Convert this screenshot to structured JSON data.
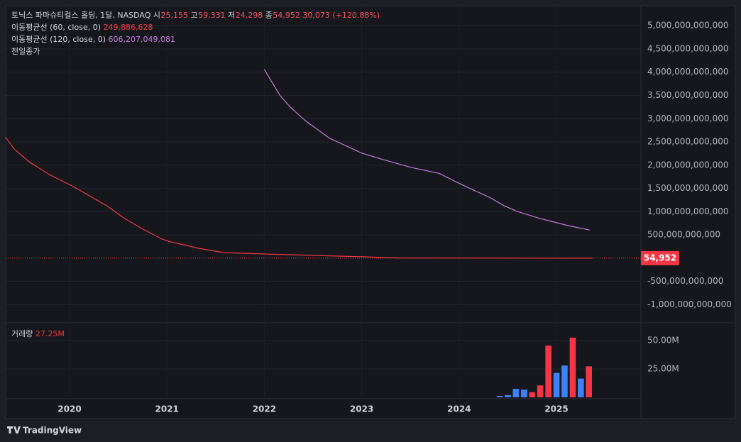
{
  "chart_data": {
    "type": "line",
    "title": "토닉스 파마슈티컬스 홀딩, 1달, NASDAQ",
    "ohlc_labels": [
      "시",
      "고",
      "저",
      "종"
    ],
    "ohlc_values": [
      {
        "value": 25155,
        "label": "25,155"
      },
      {
        "value": 59331,
        "label": "59,331"
      },
      {
        "value": 24298,
        "label": "24,298"
      },
      {
        "value": 54952,
        "label": "54,952"
      }
    ],
    "change": "30,073 (+120.88%)",
    "series": [
      {
        "name": "이동평균선 (60, close, 0)",
        "color": "#f23645",
        "last_label": "249,886,628",
        "x": [
          2019.34,
          2019.43,
          2019.58,
          2019.8,
          2020.02,
          2020.23,
          2020.38,
          2020.56,
          2020.74,
          2020.95,
          2021.04,
          2021.33,
          2021.58,
          2022.0,
          2023.0,
          2023.37,
          2025.37
        ],
        "values": [
          2610000000000,
          2350000000000,
          2080000000000,
          1790000000000,
          1560000000000,
          1310000000000,
          1130000000000,
          860000000000,
          640000000000,
          410000000000,
          350000000000,
          210000000000,
          120000000000,
          90000000000,
          30000000000,
          5000000000,
          249886628
        ]
      },
      {
        "name": "이동평균선 (120, close, 0)",
        "color": "#c27bd9",
        "last_label": "606,207,049,081",
        "x": [
          2022.0,
          2022.16,
          2022.27,
          2022.42,
          2022.67,
          2023.0,
          2023.22,
          2023.51,
          2023.8,
          2023.95,
          2024.1,
          2024.31,
          2024.46,
          2024.59,
          2024.83,
          2025.12,
          2025.34
        ],
        "values": [
          4060000000000,
          3500000000000,
          3240000000000,
          2960000000000,
          2580000000000,
          2260000000000,
          2120000000000,
          1950000000000,
          1820000000000,
          1660000000000,
          1510000000000,
          1310000000000,
          1130000000000,
          1010000000000,
          855000000000,
          700000000000,
          606207049081
        ]
      }
    ],
    "prev_close_label": "전일종가",
    "last_price": {
      "value": 54952,
      "label": "54,952",
      "color": "#f23645"
    },
    "xlim": [
      2019.344,
      2025.867
    ],
    "xticks": [
      2020,
      2021,
      2022,
      2023,
      2024,
      2025
    ],
    "ylim": [
      -1390000000000,
      5430000000000
    ],
    "yticks": [
      {
        "value": 5000000000000,
        "label": "5,000,000,000,000"
      },
      {
        "value": 4500000000000,
        "label": "4,500,000,000,000"
      },
      {
        "value": 4000000000000,
        "label": "4,000,000,000,000"
      },
      {
        "value": 3500000000000,
        "label": "3,500,000,000,000"
      },
      {
        "value": 3000000000000,
        "label": "3,000,000,000,000"
      },
      {
        "value": 2500000000000,
        "label": "2,500,000,000,000"
      },
      {
        "value": 2000000000000,
        "label": "2,000,000,000,000"
      },
      {
        "value": 1500000000000,
        "label": "1,500,000,000,000"
      },
      {
        "value": 1000000000000,
        "label": "1,000,000,000,000"
      },
      {
        "value": 500000000000,
        "label": "500,000,000,000"
      },
      {
        "value": -500000000000,
        "label": "-500,000,000,000"
      },
      {
        "value": -1000000000000,
        "label": "-1,000,000,000,000"
      }
    ],
    "grid": true,
    "volume": {
      "title": "거래량",
      "last_label": "27.25M",
      "last_color": "#f23645",
      "x": [
        2024.417,
        2024.5,
        2024.583,
        2024.667,
        2024.75,
        2024.833,
        2024.917,
        2025.0,
        2025.083,
        2025.167,
        2025.25,
        2025.333
      ],
      "values": [
        1200000,
        2000000,
        7500000,
        6800000,
        4500000,
        10500000,
        45500000,
        21500000,
        28000000,
        52500000,
        16500000,
        27250000
      ],
      "colors": [
        "#3b82f6",
        "#3b82f6",
        "#3b82f6",
        "#3b82f6",
        "#f23645",
        "#f23645",
        "#f23645",
        "#3b82f6",
        "#3b82f6",
        "#f23645",
        "#3b82f6",
        "#f23645"
      ],
      "ylim": [
        0,
        65600000
      ],
      "yticks": [
        {
          "value": 25000000,
          "label": "25.00M"
        },
        {
          "value": 50000000,
          "label": "50.00M"
        }
      ]
    }
  },
  "footer": {
    "brand": "TradingView"
  }
}
